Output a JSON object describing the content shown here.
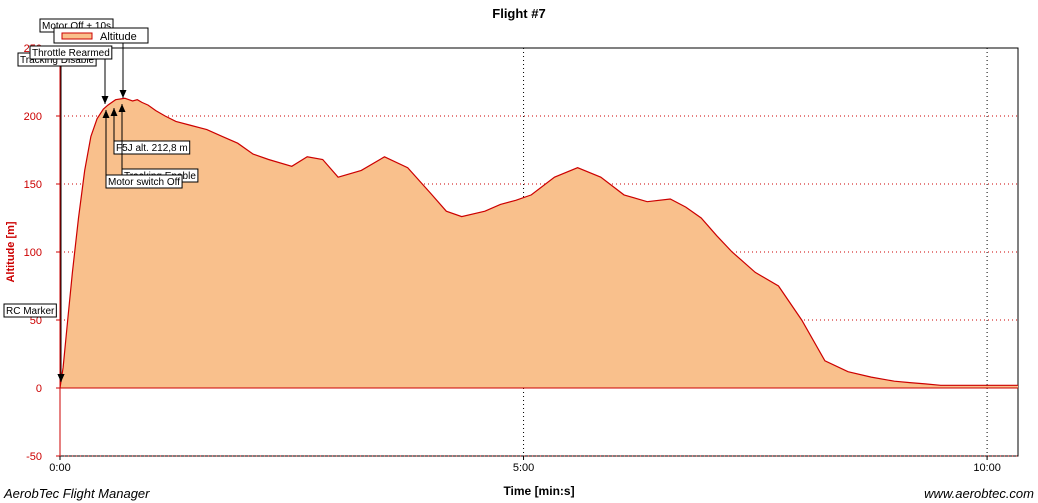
{
  "chart_data": {
    "type": "area",
    "title": "Flight #7",
    "xlabel": "Time [min:s]",
    "ylabel": "Altitude [m]",
    "xlim": [
      0,
      620
    ],
    "ylim": [
      -50,
      250
    ],
    "yticks": [
      -50,
      0,
      50,
      100,
      150,
      200
    ],
    "xticks": [
      {
        "value": 0,
        "label": "0:00"
      },
      {
        "value": 300,
        "label": "5:00"
      },
      {
        "value": 600,
        "label": "10:00"
      }
    ],
    "grid": true,
    "legend": {
      "placement": "top-left",
      "entries": [
        "Altitude"
      ]
    },
    "series": [
      {
        "name": "Altitude",
        "color": "#cc0000",
        "fill": "#f9c08c",
        "x": [
          0,
          2,
          5,
          8,
          12,
          16,
          20,
          24,
          28,
          31,
          36,
          42,
          47,
          50,
          53,
          57,
          62,
          68,
          75,
          85,
          95,
          105,
          115,
          125,
          135,
          150,
          160,
          170,
          180,
          195,
          210,
          225,
          240,
          250,
          260,
          275,
          285,
          295,
          305,
          320,
          335,
          350,
          365,
          380,
          395,
          405,
          415,
          425,
          435,
          440,
          450,
          465,
          480,
          495,
          510,
          525,
          540,
          550,
          560,
          570,
          580,
          585,
          595,
          600,
          610,
          620
        ],
        "y": [
          0,
          15,
          50,
          85,
          125,
          160,
          185,
          198,
          205,
          208,
          212,
          213,
          211,
          212,
          210,
          208,
          204,
          200,
          196,
          193,
          190,
          185,
          180,
          172,
          168,
          163,
          170,
          168,
          155,
          160,
          170,
          162,
          143,
          130,
          126,
          130,
          135,
          138,
          142,
          155,
          162,
          155,
          142,
          137,
          139,
          133,
          125,
          112,
          100,
          95,
          85,
          75,
          50,
          20,
          12,
          8,
          5,
          4,
          3,
          2,
          2,
          2,
          2,
          2,
          2,
          2
        ]
      }
    ],
    "annotations": [
      {
        "label": "RC Marker",
        "x": 0,
        "y": 0
      },
      {
        "label": "Tracking Disable",
        "x": 0,
        "y": 0
      },
      {
        "label": "Throttle Rearmed",
        "x": 30,
        "y": 208
      },
      {
        "label": "Motor Off + 10s",
        "x": 40,
        "y": 212
      },
      {
        "label": "F5J alt. 212,8 m",
        "x": 36,
        "y": 212.8
      },
      {
        "label": "Tracking Enable",
        "x": 34,
        "y": 210
      },
      {
        "label": "Motor switch Off",
        "x": 30,
        "y": 208
      }
    ]
  },
  "footer": {
    "left": "AerobTec Flight Manager",
    "right": "www.aerobtec.com"
  }
}
